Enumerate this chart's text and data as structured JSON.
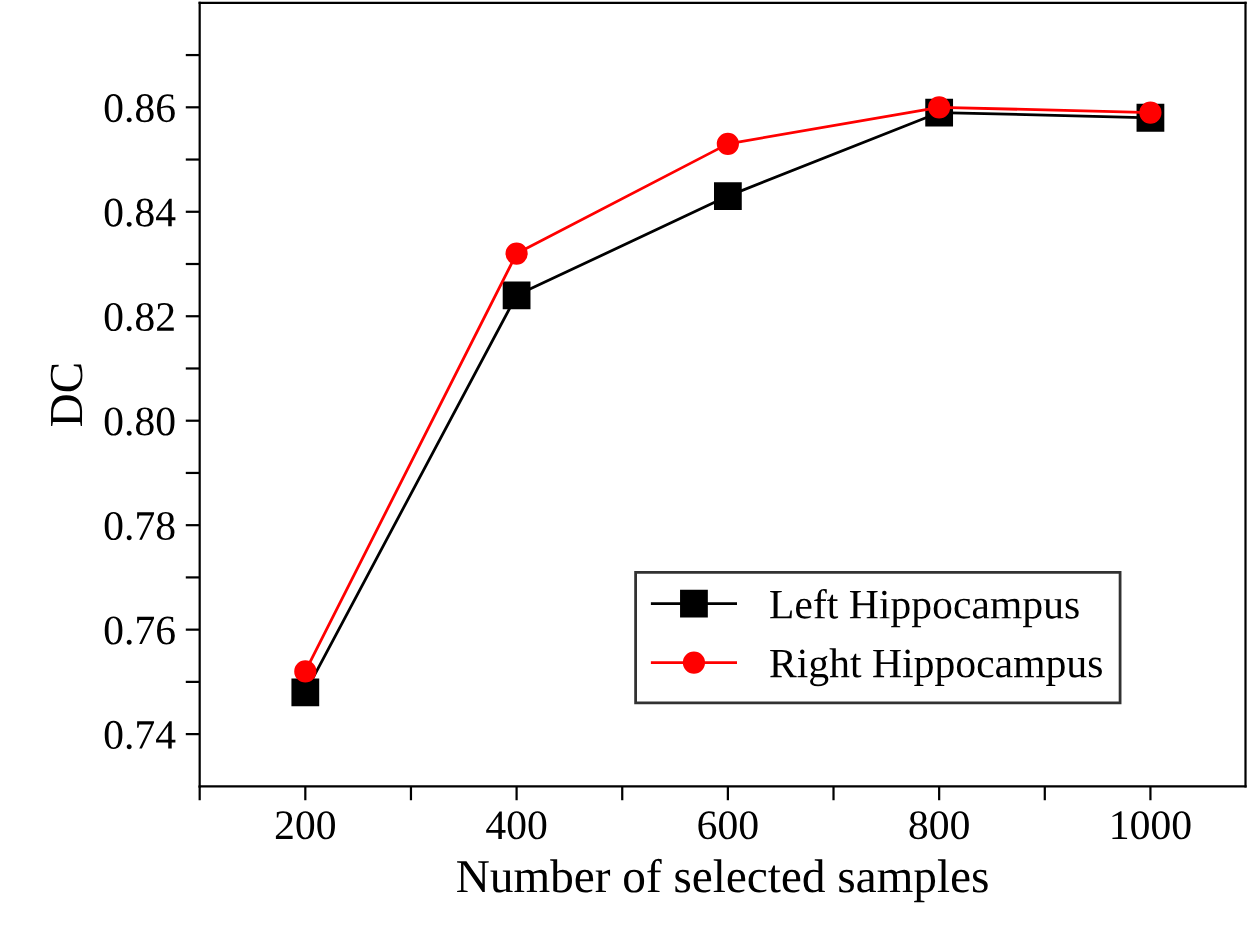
{
  "chart_data": {
    "type": "line",
    "xlabel": "Number of selected samples",
    "ylabel": "DC",
    "x": [
      200,
      400,
      600,
      800,
      1000
    ],
    "series": [
      {
        "name": "Left Hippocampus",
        "color": "#000000",
        "marker": "square",
        "values": [
          0.748,
          0.824,
          0.843,
          0.859,
          0.858
        ]
      },
      {
        "name": "Right Hippocampus",
        "color": "#ff0000",
        "marker": "circle",
        "values": [
          0.752,
          0.832,
          0.853,
          0.86,
          0.859
        ]
      }
    ],
    "xlim": [
      100,
      1090
    ],
    "ylim": [
      0.73,
      0.88
    ],
    "xticks": [
      {
        "value": 100,
        "label": null
      },
      200,
      {
        "value": 300,
        "label": null
      },
      400,
      {
        "value": 500,
        "label": null
      },
      600,
      {
        "value": 700,
        "label": null
      },
      800,
      {
        "value": 900,
        "label": null
      },
      1000
    ],
    "yticks": [
      {
        "value": 0.74,
        "label": "0.74"
      },
      {
        "value": 0.75,
        "label": null
      },
      {
        "value": 0.76,
        "label": "0.76"
      },
      {
        "value": 0.77,
        "label": null
      },
      {
        "value": 0.78,
        "label": "0.78"
      },
      {
        "value": 0.79,
        "label": null
      },
      {
        "value": 0.8,
        "label": "0.80"
      },
      {
        "value": 0.81,
        "label": null
      },
      {
        "value": 0.82,
        "label": "0.82"
      },
      {
        "value": 0.83,
        "label": null
      },
      {
        "value": 0.84,
        "label": "0.84"
      },
      {
        "value": 0.85,
        "label": null
      },
      {
        "value": 0.86,
        "label": "0.86"
      },
      {
        "value": 0.87,
        "label": null
      }
    ],
    "grid": false,
    "legend": "bottom right",
    "line_style": "solid"
  }
}
